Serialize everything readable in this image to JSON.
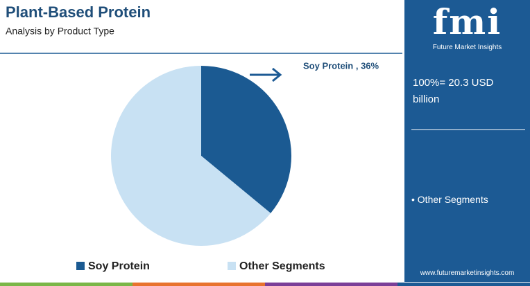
{
  "header": {
    "title": "Plant-Based Protein",
    "subtitle": "Analysis by Product Type"
  },
  "chart_data": {
    "type": "pie",
    "categories": [
      "Soy Protein",
      "Other Segments"
    ],
    "values": [
      36,
      64
    ],
    "value_labels": [
      "Soy Protein , 36%",
      null
    ],
    "colors": [
      "#1b5a92",
      "#c8e1f3"
    ],
    "legend": "bottom"
  },
  "sidebar": {
    "logo": "fmi",
    "brand": "Future Market Insights",
    "total": "100%= 20.3 USD billion",
    "segment_note": "• Other Segments",
    "url": "www.futuremarketinsights.com"
  }
}
